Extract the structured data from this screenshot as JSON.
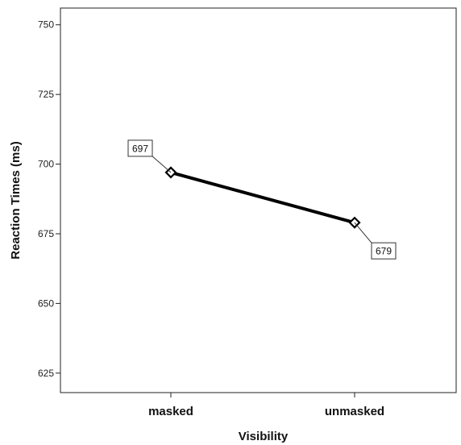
{
  "chart_data": {
    "type": "line",
    "title": "",
    "xlabel": "Visibility",
    "ylabel": "Reaction Times (ms)",
    "categories": [
      "masked",
      "unmasked"
    ],
    "series": [
      {
        "values": [
          697,
          679
        ],
        "data_labels": [
          "697",
          "679"
        ]
      }
    ],
    "y_ticks": [
      625,
      650,
      675,
      700,
      725,
      750
    ],
    "ylim": [
      618,
      756
    ],
    "grid": false,
    "legend": "none",
    "line_color": "#000000",
    "marker": "diamond"
  }
}
